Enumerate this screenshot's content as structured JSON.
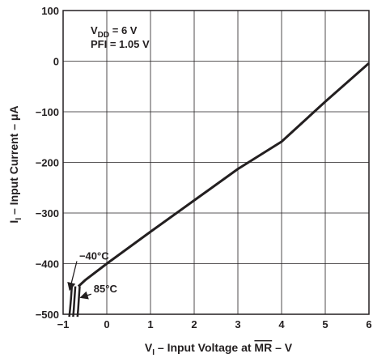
{
  "chart_data": {
    "type": "line",
    "title": "",
    "xlabel": {
      "main": "V",
      "sub": "I",
      "rest": " – Input Voltage at ",
      "overline": "MR",
      "tail": " – V"
    },
    "ylabel": {
      "main": "I",
      "sub": "I",
      "rest": " – Input Current – μA"
    },
    "xlim": [
      -1,
      6
    ],
    "ylim": [
      -500,
      100
    ],
    "grid": true,
    "x_ticks": [
      -1,
      0,
      1,
      2,
      3,
      4,
      5,
      6
    ],
    "x_tick_labels": [
      "−1",
      "0",
      "1",
      "2",
      "3",
      "4",
      "5",
      "6"
    ],
    "y_ticks": [
      100,
      0,
      -100,
      -200,
      -300,
      -400,
      -500
    ],
    "y_tick_labels": [
      "100",
      "0",
      "−100",
      "−200",
      "−300",
      "−400",
      "−500"
    ],
    "conditions": {
      "vdd": {
        "main": "V",
        "sub": "DD",
        "rest": " = 6 V"
      },
      "pfi": "PFI = 1.05 V"
    },
    "series": [
      {
        "x": [
          6.0,
          5.0,
          4.0,
          3.0,
          2.0,
          1.0,
          0.0,
          -0.5,
          -0.65
        ],
        "y": [
          -4,
          -80,
          -159,
          -213,
          -275,
          -337,
          -400,
          -433,
          -445
        ]
      }
    ],
    "branches": [
      {
        "x": [
          -0.8,
          -0.82,
          -0.84,
          -0.86
        ],
        "y": [
          -445,
          -470,
          -490,
          -505
        ]
      },
      {
        "x": [
          -0.72,
          -0.74,
          -0.755,
          -0.77
        ],
        "y": [
          -445,
          -470,
          -490,
          -505
        ]
      },
      {
        "x": [
          -0.62,
          -0.64,
          -0.655,
          -0.67
        ],
        "y": [
          -445,
          -470,
          -490,
          -505
        ]
      }
    ],
    "annotations": [
      {
        "text": "−40°C",
        "x": -0.63,
        "y": -392,
        "arrow_to": [
          -0.85,
          -452
        ]
      },
      {
        "text": "85°C",
        "x": -0.3,
        "y": -457,
        "arrow_to": [
          -0.6,
          -467
        ]
      }
    ]
  }
}
